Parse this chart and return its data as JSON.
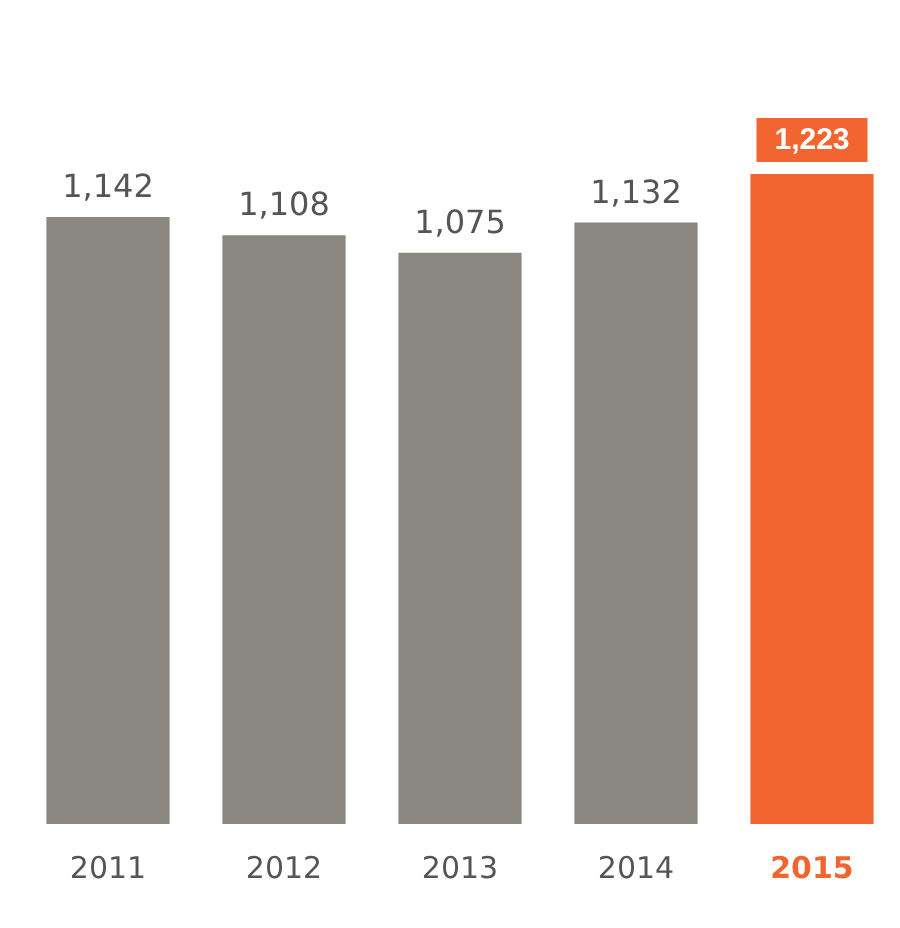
{
  "chart_data": {
    "type": "bar",
    "categories": [
      "2011",
      "2012",
      "2013",
      "2014",
      "2015"
    ],
    "values": [
      1142,
      1108,
      1075,
      1132,
      1223
    ],
    "value_labels": [
      "1,142",
      "1,108",
      "1,075",
      "1,132",
      "1,223"
    ],
    "colors": [
      "#8a8780",
      "#8a8780",
      "#8a8780",
      "#8a8780",
      "#f26531"
    ],
    "tick_labels": "x",
    "legend": false
  }
}
